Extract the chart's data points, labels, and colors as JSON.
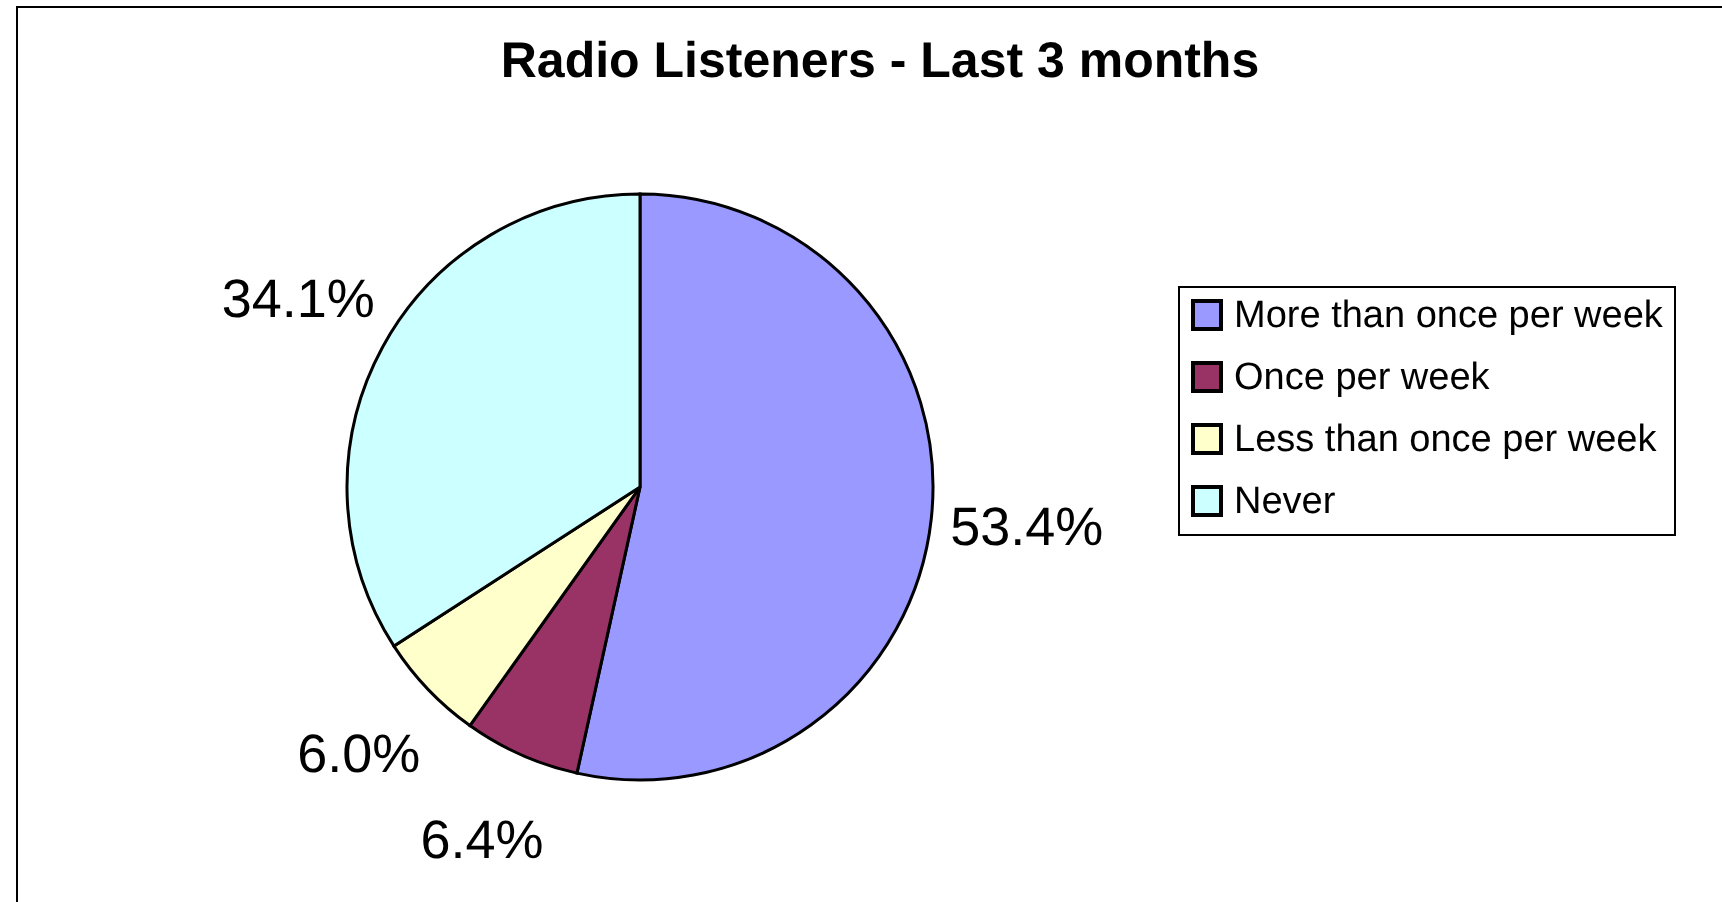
{
  "chart_data": {
    "type": "pie",
    "title": "Radio Listeners - Last 3 months",
    "categories": [
      "More than once per week",
      "Once per week",
      "Less than once per week",
      "Never"
    ],
    "values": [
      53.4,
      6.4,
      6.0,
      34.1
    ],
    "value_labels": [
      "53.4%",
      "6.4%",
      "6.0%",
      "34.1%"
    ],
    "colors": [
      "#9999ff",
      "#993366",
      "#ffffcc",
      "#ccffff"
    ],
    "legend": "right"
  }
}
